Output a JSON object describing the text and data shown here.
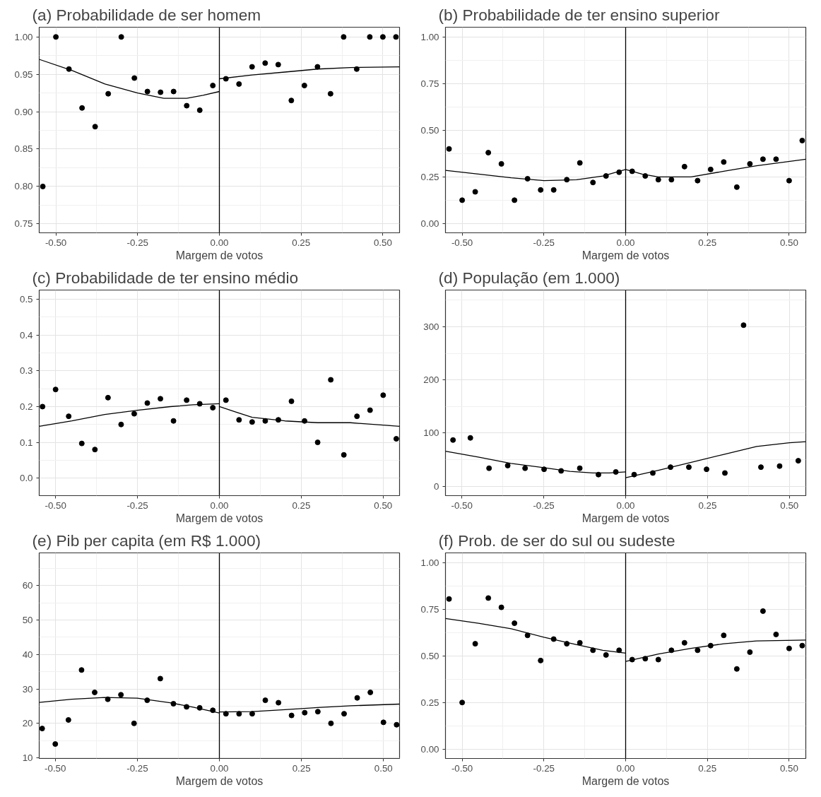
{
  "chart_data": [
    {
      "type": "scatter",
      "title": "(a) Probabilidade de ser homem",
      "xlabel": "Margem de votos",
      "grid": true,
      "xlim": [
        -0.551,
        0.551
      ],
      "ylim": [
        0.738,
        1.013
      ],
      "xticks": [
        {
          "value": -0.5,
          "label": "-0.50"
        },
        {
          "value": -0.25,
          "label": "-0.25"
        },
        {
          "value": 0,
          "label": "0.00"
        },
        {
          "value": 0.25,
          "label": "0.25"
        },
        {
          "value": 0.5,
          "label": "0.50"
        }
      ],
      "yticks": [
        {
          "value": 0.75,
          "label": "0.75"
        },
        {
          "value": 0.8,
          "label": "0.80"
        },
        {
          "value": 0.85,
          "label": "0.85"
        },
        {
          "value": 0.9,
          "label": "0.90"
        },
        {
          "value": 0.95,
          "label": "0.95"
        },
        {
          "value": 1.0,
          "label": "1.00"
        }
      ],
      "ref_lines": [
        {
          "axis": "x",
          "value": 0,
          "color": "#000000"
        }
      ],
      "series": [
        {
          "marker": "circle",
          "color": "#000000",
          "x": [
            -0.54,
            -0.5,
            -0.46,
            -0.42,
            -0.38,
            -0.34,
            -0.3,
            -0.26,
            -0.22,
            -0.18,
            -0.14,
            -0.1,
            -0.06,
            -0.02,
            0.02,
            0.06,
            0.1,
            0.14,
            0.18,
            0.22,
            0.26,
            0.3,
            0.34,
            0.38,
            0.42,
            0.46,
            0.5,
            0.54
          ],
          "values": [
            0.8,
            1.0,
            0.957,
            0.905,
            0.88,
            0.924,
            1.0,
            0.945,
            0.927,
            0.926,
            0.927,
            0.908,
            0.902,
            0.935,
            0.944,
            0.937,
            0.96,
            0.965,
            0.963,
            0.915,
            0.935,
            0.96,
            0.924,
            1.0,
            0.957,
            1.0,
            1.0,
            1.0
          ]
        },
        {
          "type": "line",
          "color": "#000000",
          "x": [
            -0.551,
            -0.45,
            -0.35,
            -0.25,
            -0.17,
            -0.1,
            -0.05,
            0,
            0,
            0.1,
            0.2,
            0.3,
            0.4,
            0.551
          ],
          "values": [
            0.97,
            0.955,
            0.937,
            0.925,
            0.918,
            0.918,
            0.922,
            0.927,
            0.944,
            0.949,
            0.953,
            0.957,
            0.959,
            0.96
          ]
        }
      ]
    },
    {
      "type": "scatter",
      "title": "(b) Probabilidade de ter ensino superior",
      "xlabel": "Margem de votos",
      "grid": true,
      "xlim": [
        -0.551,
        0.551
      ],
      "ylim": [
        -0.05,
        1.053
      ],
      "xticks": [
        {
          "value": -0.5,
          "label": "-0.50"
        },
        {
          "value": -0.25,
          "label": "-0.25"
        },
        {
          "value": 0,
          "label": "0.00"
        },
        {
          "value": 0.25,
          "label": "0.25"
        },
        {
          "value": 0.5,
          "label": "0.50"
        }
      ],
      "yticks": [
        {
          "value": 0,
          "label": "0.00"
        },
        {
          "value": 0.25,
          "label": "0.25"
        },
        {
          "value": 0.5,
          "label": "0.50"
        },
        {
          "value": 0.75,
          "label": "0.75"
        },
        {
          "value": 1.0,
          "label": "1.00"
        }
      ],
      "ref_lines": [
        {
          "axis": "x",
          "value": 0,
          "color": "#000000"
        }
      ],
      "series": [
        {
          "marker": "circle",
          "color": "#000000",
          "x": [
            -0.54,
            -0.5,
            -0.46,
            -0.42,
            -0.38,
            -0.34,
            -0.3,
            -0.26,
            -0.22,
            -0.18,
            -0.14,
            -0.1,
            -0.06,
            -0.02,
            0.02,
            0.06,
            0.1,
            0.14,
            0.18,
            0.22,
            0.26,
            0.3,
            0.34,
            0.38,
            0.42,
            0.46,
            0.5,
            0.54
          ],
          "values": [
            0.4,
            0.125,
            0.17,
            0.38,
            0.32,
            0.125,
            0.24,
            0.18,
            0.18,
            0.235,
            0.325,
            0.22,
            0.255,
            0.275,
            0.28,
            0.255,
            0.235,
            0.235,
            0.305,
            0.23,
            0.29,
            0.33,
            0.195,
            0.32,
            0.345,
            0.345,
            0.23,
            0.445
          ]
        },
        {
          "type": "line",
          "color": "#000000",
          "x": [
            -0.551,
            -0.45,
            -0.35,
            -0.25,
            -0.15,
            -0.07,
            0,
            0,
            0.05,
            0.1,
            0.2,
            0.3,
            0.4,
            0.551
          ],
          "values": [
            0.285,
            0.265,
            0.245,
            0.23,
            0.235,
            0.255,
            0.29,
            0.29,
            0.265,
            0.25,
            0.25,
            0.28,
            0.31,
            0.345
          ]
        }
      ]
    },
    {
      "type": "scatter",
      "title": "(c) Probabilidade de ter ensino médio",
      "xlabel": "Margem de votos",
      "grid": true,
      "xlim": [
        -0.55,
        0.55
      ],
      "ylim": [
        -0.049,
        0.526
      ],
      "xticks": [
        {
          "value": -0.5,
          "label": "-0.50"
        },
        {
          "value": -0.25,
          "label": "-0.25"
        },
        {
          "value": 0,
          "label": "0.00"
        },
        {
          "value": 0.25,
          "label": "0.25"
        },
        {
          "value": 0.5,
          "label": "0.50"
        }
      ],
      "yticks": [
        {
          "value": 0,
          "label": "0.0"
        },
        {
          "value": 0.1,
          "label": "0.1"
        },
        {
          "value": 0.2,
          "label": "0.2"
        },
        {
          "value": 0.3,
          "label": "0.3"
        },
        {
          "value": 0.4,
          "label": "0.4"
        },
        {
          "value": 0.5,
          "label": "0.5"
        }
      ],
      "ref_lines": [
        {
          "axis": "x",
          "value": 0,
          "color": "#000000"
        }
      ],
      "series": [
        {
          "marker": "circle",
          "color": "#000000",
          "x": [
            -0.54,
            -0.5,
            -0.46,
            -0.42,
            -0.38,
            -0.34,
            -0.3,
            -0.26,
            -0.22,
            -0.18,
            -0.14,
            -0.1,
            -0.06,
            -0.02,
            0.02,
            0.06,
            0.1,
            0.14,
            0.18,
            0.22,
            0.26,
            0.3,
            0.34,
            0.38,
            0.42,
            0.46,
            0.5,
            0.54
          ],
          "values": [
            0.2,
            0.248,
            0.173,
            0.097,
            0.08,
            0.225,
            0.15,
            0.18,
            0.21,
            0.222,
            0.16,
            0.218,
            0.208,
            0.197,
            0.218,
            0.163,
            0.157,
            0.16,
            0.163,
            0.215,
            0.16,
            0.1,
            0.275,
            0.065,
            0.173,
            0.19,
            0.232,
            0.11
          ]
        },
        {
          "type": "line",
          "color": "#000000",
          "x": [
            -0.55,
            -0.45,
            -0.35,
            -0.25,
            -0.15,
            -0.08,
            0,
            0,
            0.05,
            0.1,
            0.2,
            0.3,
            0.4,
            0.55
          ],
          "values": [
            0.145,
            0.16,
            0.178,
            0.19,
            0.2,
            0.205,
            0.208,
            0.2,
            0.185,
            0.17,
            0.16,
            0.155,
            0.155,
            0.145
          ]
        }
      ]
    },
    {
      "type": "scatter",
      "title": "(d) População (em 1.000)",
      "xlabel": "Margem de votos",
      "grid": true,
      "xlim": [
        -0.55,
        0.55
      ],
      "ylim": [
        -17.6,
        369
      ],
      "xticks": [
        {
          "value": -0.5,
          "label": "-0.50"
        },
        {
          "value": -0.25,
          "label": "-0.25"
        },
        {
          "value": 0,
          "label": "0.00"
        },
        {
          "value": 0.25,
          "label": "0.25"
        },
        {
          "value": 0.5,
          "label": "0.50"
        }
      ],
      "yticks": [
        0,
        100,
        200,
        300
      ],
      "ref_lines": [
        {
          "axis": "x",
          "value": 0,
          "color": "#000000"
        }
      ],
      "series": [
        {
          "marker": "circle",
          "color": "#000000",
          "x": [
            -0.527,
            -0.474,
            -0.417,
            -0.36,
            -0.307,
            -0.249,
            -0.197,
            -0.14,
            -0.083,
            -0.03,
            0.026,
            0.083,
            0.137,
            0.193,
            0.247,
            0.303,
            0.36,
            0.413,
            0.47,
            0.527
          ],
          "values": [
            87,
            91,
            34,
            39,
            34,
            32,
            29,
            34,
            22,
            27,
            22,
            25,
            36,
            36,
            32,
            25,
            303,
            36,
            38,
            48
          ]
        },
        {
          "type": "line",
          "color": "#000000",
          "x": [
            -0.55,
            -0.45,
            -0.35,
            -0.25,
            -0.17,
            -0.1,
            -0.05,
            0,
            0,
            0.1,
            0.2,
            0.3,
            0.4,
            0.5,
            0.55
          ],
          "values": [
            66,
            55,
            43,
            35,
            28,
            25,
            25,
            27,
            16,
            30,
            45,
            60,
            75,
            82,
            84
          ]
        }
      ]
    },
    {
      "type": "scatter",
      "title": "(e) Pib per capita (em R$ 1.000)",
      "xlabel": "Margem de votos",
      "grid": true,
      "xlim": [
        -0.549,
        0.549
      ],
      "ylim": [
        9.8,
        69.5
      ],
      "xticks": [
        {
          "value": -0.5,
          "label": "-0.50"
        },
        {
          "value": -0.25,
          "label": "-0.25"
        },
        {
          "value": 0,
          "label": "0.00"
        },
        {
          "value": 0.25,
          "label": "0.25"
        },
        {
          "value": 0.5,
          "label": "0.50"
        }
      ],
      "yticks": [
        10,
        20,
        30,
        40,
        50,
        60
      ],
      "ref_lines": [
        {
          "axis": "x",
          "value": 0,
          "color": "#000000"
        }
      ],
      "series": [
        {
          "marker": "circle",
          "color": "#000000",
          "x": [
            -0.54,
            -0.5,
            -0.46,
            -0.42,
            -0.38,
            -0.34,
            -0.3,
            -0.26,
            -0.22,
            -0.18,
            -0.14,
            -0.1,
            -0.06,
            -0.02,
            0.02,
            0.06,
            0.1,
            0.14,
            0.18,
            0.22,
            0.26,
            0.3,
            0.34,
            0.38,
            0.42,
            0.46,
            0.5,
            0.54
          ],
          "values": [
            18.5,
            14,
            21,
            35.5,
            29,
            27,
            28.3,
            20,
            26.7,
            33,
            25.7,
            24.8,
            24.5,
            23.8,
            22.8,
            22.8,
            22.8,
            26.7,
            26,
            22.3,
            23.1,
            23.4,
            20,
            22.8,
            27.4,
            29,
            20.3,
            19.6
          ]
        },
        {
          "type": "line",
          "color": "#000000",
          "x": [
            -0.549,
            -0.45,
            -0.35,
            -0.25,
            -0.15,
            -0.08,
            0,
            0,
            0.1,
            0.2,
            0.3,
            0.4,
            0.549
          ],
          "values": [
            26.1,
            27,
            27.5,
            27.3,
            26,
            24.7,
            23,
            23.3,
            23.4,
            24,
            24.6,
            25.1,
            25.6
          ]
        }
      ]
    },
    {
      "type": "scatter",
      "title": "(f) Prob. de ser do sul ou sudeste",
      "xlabel": "Margem de votos",
      "grid": true,
      "xlim": [
        -0.551,
        0.551
      ],
      "ylim": [
        -0.05,
        1.052
      ],
      "xticks": [
        {
          "value": -0.5,
          "label": "-0.50"
        },
        {
          "value": -0.25,
          "label": "-0.25"
        },
        {
          "value": 0,
          "label": "0.00"
        },
        {
          "value": 0.25,
          "label": "0.25"
        },
        {
          "value": 0.5,
          "label": "0.50"
        }
      ],
      "yticks": [
        {
          "value": 0,
          "label": "0.00"
        },
        {
          "value": 0.25,
          "label": "0.25"
        },
        {
          "value": 0.5,
          "label": "0.50"
        },
        {
          "value": 0.75,
          "label": "0.75"
        },
        {
          "value": 1.0,
          "label": "1.00"
        }
      ],
      "ref_lines": [
        {
          "axis": "x",
          "value": 0,
          "color": "#000000"
        }
      ],
      "series": [
        {
          "marker": "circle",
          "color": "#000000",
          "x": [
            -0.54,
            -0.5,
            -0.46,
            -0.42,
            -0.38,
            -0.34,
            -0.3,
            -0.26,
            -0.22,
            -0.18,
            -0.14,
            -0.1,
            -0.06,
            -0.02,
            0.02,
            0.06,
            0.1,
            0.14,
            0.18,
            0.22,
            0.26,
            0.3,
            0.34,
            0.38,
            0.42,
            0.46,
            0.5,
            0.54
          ],
          "values": [
            0.805,
            0.25,
            0.565,
            0.81,
            0.76,
            0.675,
            0.61,
            0.475,
            0.59,
            0.565,
            0.57,
            0.53,
            0.505,
            0.53,
            0.48,
            0.485,
            0.48,
            0.53,
            0.57,
            0.53,
            0.555,
            0.61,
            0.43,
            0.52,
            0.74,
            0.615,
            0.54,
            0.555
          ]
        },
        {
          "type": "line",
          "color": "#000000",
          "x": [
            -0.551,
            -0.45,
            -0.35,
            -0.25,
            -0.15,
            -0.07,
            0,
            0,
            0.05,
            0.1,
            0.2,
            0.3,
            0.4,
            0.551
          ],
          "values": [
            0.7,
            0.675,
            0.645,
            0.6,
            0.56,
            0.53,
            0.515,
            0.47,
            0.49,
            0.51,
            0.54,
            0.565,
            0.58,
            0.585
          ]
        }
      ]
    }
  ]
}
